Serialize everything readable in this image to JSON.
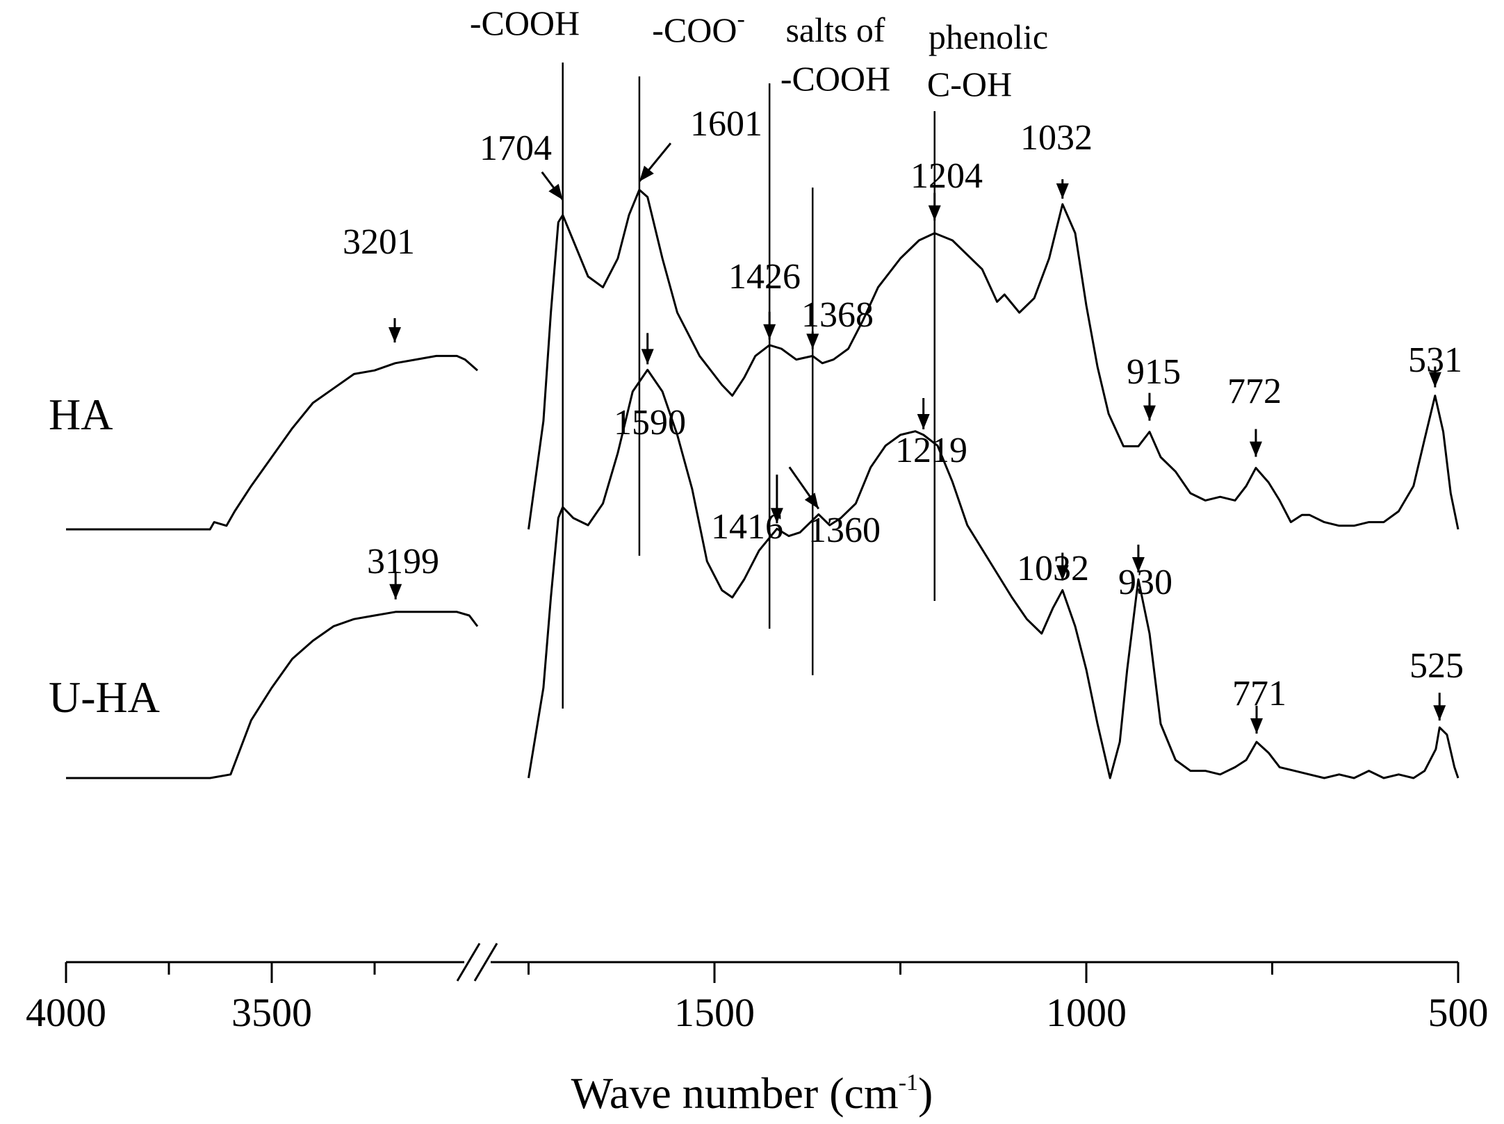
{
  "chart_data": {
    "type": "line",
    "title": "",
    "xlabel": "Wave number (cm",
    "xlabel_sup": "-1",
    "xlabel_suffix": ")",
    "ylabel": "",
    "x_axis": {
      "direction": "descending",
      "broken": true,
      "segments": [
        {
          "range": [
            4000,
            3000
          ],
          "ticks": [
            4000,
            3500
          ],
          "minor_ticks": [
            3750,
            3250
          ]
        },
        {
          "range": [
            1750,
            500
          ],
          "ticks": [
            1500,
            1000,
            500
          ],
          "minor_ticks": [
            1750,
            1250,
            750
          ]
        }
      ],
      "tick_labels": [
        "4000",
        "3500",
        "1500",
        "1000",
        "500"
      ]
    },
    "series": [
      {
        "name": "HA",
        "x": [
          4000,
          3650,
          3640,
          3610,
          3590,
          3550,
          3500,
          3450,
          3400,
          3350,
          3300,
          3250,
          3200,
          3150,
          3100,
          3050,
          3030,
          3000,
          1750,
          1730,
          1720,
          1710,
          1704,
          1690,
          1670,
          1650,
          1630,
          1615,
          1601,
          1590,
          1570,
          1550,
          1520,
          1490,
          1476,
          1460,
          1445,
          1426,
          1410,
          1390,
          1368,
          1355,
          1340,
          1320,
          1300,
          1280,
          1250,
          1225,
          1204,
          1180,
          1160,
          1140,
          1120,
          1110,
          1090,
          1070,
          1050,
          1032,
          1015,
          1000,
          985,
          970,
          950,
          930,
          915,
          900,
          880,
          860,
          840,
          820,
          800,
          785,
          772,
          755,
          740,
          725,
          710,
          700,
          680,
          660,
          640,
          620,
          600,
          580,
          560,
          545,
          531,
          520,
          510,
          500
        ],
        "y": [
          0,
          0,
          0.02,
          0.01,
          0.05,
          0.12,
          0.2,
          0.28,
          0.35,
          0.39,
          0.43,
          0.44,
          0.46,
          0.47,
          0.48,
          0.48,
          0.47,
          0.44,
          0,
          0.3,
          0.6,
          0.85,
          0.87,
          0.8,
          0.7,
          0.67,
          0.75,
          0.87,
          0.94,
          0.92,
          0.75,
          0.6,
          0.48,
          0.4,
          0.37,
          0.42,
          0.48,
          0.51,
          0.5,
          0.47,
          0.48,
          0.46,
          0.47,
          0.5,
          0.58,
          0.67,
          0.75,
          0.8,
          0.82,
          0.8,
          0.76,
          0.72,
          0.63,
          0.65,
          0.6,
          0.64,
          0.75,
          0.9,
          0.82,
          0.62,
          0.45,
          0.32,
          0.23,
          0.23,
          0.27,
          0.2,
          0.16,
          0.1,
          0.08,
          0.09,
          0.08,
          0.12,
          0.17,
          0.13,
          0.08,
          0.02,
          0.04,
          0.04,
          0.02,
          0.01,
          0.01,
          0.02,
          0.02,
          0.05,
          0.12,
          0.25,
          0.37,
          0.27,
          0.1,
          0
        ]
      },
      {
        "name": "U-HA",
        "x": [
          4000,
          3700,
          3650,
          3600,
          3550,
          3500,
          3450,
          3400,
          3350,
          3300,
          3250,
          3199,
          3150,
          3100,
          3050,
          3020,
          3000,
          1750,
          1730,
          1720,
          1710,
          1704,
          1690,
          1670,
          1650,
          1630,
          1610,
          1590,
          1570,
          1550,
          1530,
          1510,
          1490,
          1476,
          1460,
          1440,
          1416,
          1400,
          1385,
          1360,
          1345,
          1330,
          1310,
          1290,
          1270,
          1250,
          1230,
          1219,
          1200,
          1180,
          1160,
          1130,
          1100,
          1080,
          1060,
          1045,
          1032,
          1015,
          1000,
          985,
          968,
          955,
          945,
          930,
          915,
          900,
          880,
          860,
          840,
          820,
          800,
          785,
          771,
          755,
          740,
          720,
          700,
          680,
          660,
          640,
          620,
          600,
          580,
          560,
          545,
          530,
          525,
          515,
          505,
          500
        ],
        "y": [
          0,
          0,
          0,
          0.01,
          0.16,
          0.25,
          0.33,
          0.38,
          0.42,
          0.44,
          0.45,
          0.46,
          0.46,
          0.46,
          0.46,
          0.45,
          0.42,
          0,
          0.25,
          0.5,
          0.72,
          0.75,
          0.72,
          0.7,
          0.76,
          0.9,
          1.07,
          1.13,
          1.07,
          0.95,
          0.8,
          0.6,
          0.52,
          0.5,
          0.55,
          0.63,
          0.69,
          0.67,
          0.68,
          0.73,
          0.7,
          0.72,
          0.76,
          0.86,
          0.92,
          0.95,
          0.96,
          0.95,
          0.92,
          0.82,
          0.7,
          0.6,
          0.5,
          0.44,
          0.4,
          0.47,
          0.52,
          0.42,
          0.3,
          0.15,
          0.0,
          0.1,
          0.3,
          0.55,
          0.4,
          0.15,
          0.05,
          0.02,
          0.02,
          0.01,
          0.03,
          0.05,
          0.1,
          0.07,
          0.03,
          0.02,
          0.01,
          0.0,
          0.01,
          0.0,
          0.02,
          0.0,
          0.01,
          0.0,
          0.02,
          0.08,
          0.14,
          0.12,
          0.03,
          0.0
        ]
      }
    ],
    "peak_annotations": [
      {
        "series": "HA",
        "x": 3201,
        "label": "3201"
      },
      {
        "series": "HA",
        "x": 1704,
        "label": "1704"
      },
      {
        "series": "HA",
        "x": 1601,
        "label": "1601"
      },
      {
        "series": "HA",
        "x": 1426,
        "label": "1426"
      },
      {
        "series": "HA",
        "x": 1368,
        "label": "1368"
      },
      {
        "series": "HA",
        "x": 1204,
        "label": "1204"
      },
      {
        "series": "HA",
        "x": 1032,
        "label": "1032"
      },
      {
        "series": "HA",
        "x": 915,
        "label": "915"
      },
      {
        "series": "HA",
        "x": 772,
        "label": "772"
      },
      {
        "series": "HA",
        "x": 531,
        "label": "531"
      },
      {
        "series": "U-HA",
        "x": 3199,
        "label": "3199"
      },
      {
        "series": "U-HA",
        "x": 1590,
        "label": "1590"
      },
      {
        "series": "U-HA",
        "x": 1416,
        "label": "1416"
      },
      {
        "series": "U-HA",
        "x": 1360,
        "label": "1360"
      },
      {
        "series": "U-HA",
        "x": 1219,
        "label": "1219"
      },
      {
        "series": "U-HA",
        "x": 1032,
        "label": "1032"
      },
      {
        "series": "U-HA",
        "x": 930,
        "label": "930"
      },
      {
        "series": "U-HA",
        "x": 771,
        "label": "771"
      },
      {
        "series": "U-HA",
        "x": 525,
        "label": "525"
      }
    ],
    "reference_lines": [
      {
        "x": 1704,
        "group": "-COOH"
      },
      {
        "x": 1601,
        "group": "-COO-"
      },
      {
        "x": 1426,
        "group": "salts of -COOH"
      },
      {
        "x": 1368,
        "group": "salts of -COOH"
      },
      {
        "x": 1204,
        "group": "phenolic C-OH"
      }
    ],
    "group_labels": {
      "cooh": "-COOH",
      "coo": "-COO",
      "coo_sup": "-",
      "salts_line1": "salts of",
      "salts_line2": "-COOH",
      "phenolic_line1": "phenolic",
      "phenolic_line2": "C-OH"
    },
    "series_labels": [
      "HA",
      "U-HA"
    ]
  }
}
